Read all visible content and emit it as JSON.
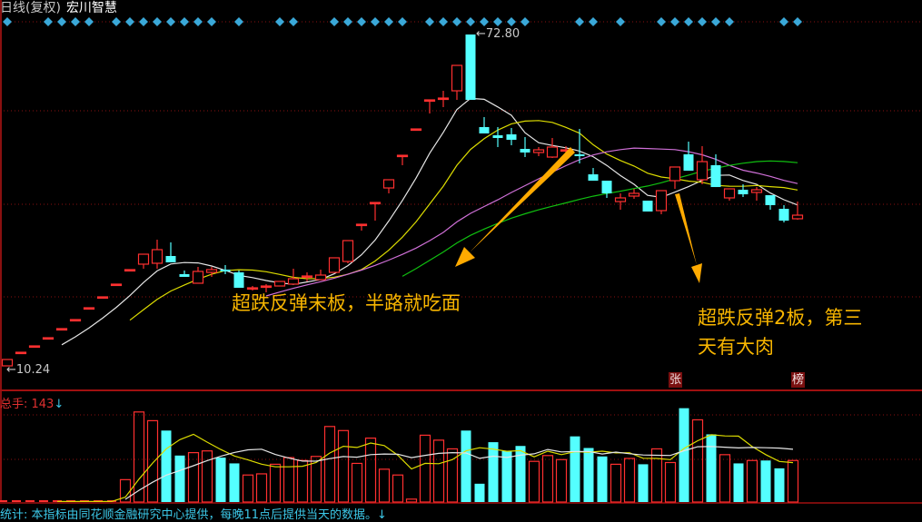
{
  "header": {
    "period": "日线(复权)",
    "stock_name": "宏川智慧"
  },
  "volume_panel": {
    "label": "总手: 143",
    "arrow": "↓"
  },
  "footer": {
    "text": "统计: 本指标由同花顺金融研究中心提供，每晚11点后提供当天的数据。↓"
  },
  "annotations": [
    {
      "text": "超跌反弹末板，半路就吃面"
    },
    {
      "line1": "超跌反弹2板，第三",
      "line2": "天有大肉"
    }
  ],
  "tags": [
    {
      "text": "张",
      "index": 48
    },
    {
      "text": "榜",
      "index": 57
    }
  ],
  "colors": {
    "up": "#ff3030",
    "down": "#54ffff",
    "ma5": "#e6e6e6",
    "ma10": "#dcdc00",
    "ma20": "#d070d8",
    "ma30": "#10c010",
    "arrow": "#ffaa00",
    "signal": "#3aa8d8",
    "grid": "#8a1010"
  },
  "chart_data": {
    "type": "candlestick",
    "price_labels": {
      "high": "72.80",
      "low": "10.24"
    },
    "price_range": [
      10.24,
      72.8
    ],
    "moving_averages": [
      5,
      10,
      20,
      30
    ],
    "volume_moving_averages": [
      5,
      10
    ],
    "signal_indices": [
      0,
      3,
      4,
      5,
      6,
      8,
      9,
      10,
      11,
      12,
      13,
      14,
      15,
      17,
      20,
      21,
      24,
      25,
      26,
      27,
      28,
      29,
      31,
      32,
      33,
      34,
      35,
      36,
      37,
      38,
      42,
      43,
      45,
      48,
      49,
      50,
      51,
      52,
      53,
      57,
      58
    ],
    "candles": [
      [
        10.24,
        11.44,
        10.24,
        11.44
      ],
      [
        12.81,
        12.81,
        12.81,
        12.81
      ],
      [
        14.01,
        14.01,
        14.01,
        14.01
      ],
      [
        15.55,
        15.55,
        15.55,
        15.55
      ],
      [
        17.27,
        17.27,
        17.27,
        17.27
      ],
      [
        18.98,
        18.98,
        18.98,
        18.98
      ],
      [
        21.21,
        21.21,
        21.21,
        21.21
      ],
      [
        23.27,
        23.27,
        23.27,
        23.27
      ],
      [
        25.67,
        25.67,
        25.67,
        25.67
      ],
      [
        28.41,
        28.41,
        28.41,
        28.41
      ],
      [
        29.44,
        31.32,
        28.58,
        31.32
      ],
      [
        29.61,
        34.06,
        28.58,
        32.18
      ],
      [
        30.98,
        33.55,
        29.78,
        29.78
      ],
      [
        27.55,
        28.24,
        27.04,
        27.04
      ],
      [
        25.84,
        28.92,
        25.84,
        28.07
      ],
      [
        27.89,
        28.92,
        27.04,
        28.41
      ],
      [
        28.41,
        29.27,
        27.55,
        28.07
      ],
      [
        27.89,
        28.24,
        24.98,
        24.98
      ],
      [
        24.81,
        25.32,
        24.47,
        24.98
      ],
      [
        25.15,
        25.67,
        24.12,
        25.32
      ],
      [
        25.32,
        26.18,
        25.32,
        26.18
      ],
      [
        25.67,
        28.58,
        25.67,
        26.69
      ],
      [
        27.04,
        27.89,
        26.18,
        27.21
      ],
      [
        26.52,
        28.41,
        26.52,
        27.38
      ],
      [
        27.89,
        30.64,
        27.89,
        30.64
      ],
      [
        29.95,
        33.89,
        29.61,
        33.89
      ],
      [
        36.98,
        36.98,
        35.78,
        36.98
      ],
      [
        41.09,
        41.09,
        37.66,
        41.09
      ],
      [
        43.83,
        45.38,
        42.81,
        45.38
      ],
      [
        50.0,
        50.0,
        48.12,
        50.0
      ],
      [
        54.97,
        54.97,
        54.97,
        54.97
      ],
      [
        60.46,
        60.46,
        57.89,
        60.46
      ],
      [
        60.63,
        62.17,
        59.09,
        60.8
      ],
      [
        62.17,
        66.97,
        60.46,
        66.97
      ],
      [
        72.8,
        72.8,
        60.46,
        60.46
      ],
      [
        55.32,
        57.2,
        54.12,
        54.12
      ],
      [
        53.77,
        55.32,
        51.55,
        53.26
      ],
      [
        53.95,
        55.15,
        51.89,
        52.92
      ],
      [
        51.2,
        53.43,
        49.66,
        50.52
      ],
      [
        50.52,
        51.55,
        49.83,
        51.03
      ],
      [
        49.66,
        53.26,
        49.49,
        51.55
      ],
      [
        50.86,
        51.72,
        48.98,
        51.03
      ],
      [
        50.18,
        54.97,
        48.46,
        49.83
      ],
      [
        46.4,
        47.6,
        45.2,
        45.2
      ],
      [
        45.2,
        45.2,
        41.95,
        42.81
      ],
      [
        41.26,
        42.81,
        39.72,
        41.95
      ],
      [
        42.29,
        43.66,
        41.78,
        42.81
      ],
      [
        41.43,
        41.43,
        39.38,
        39.38
      ],
      [
        39.55,
        43.32,
        38.86,
        43.32
      ],
      [
        45.2,
        47.78,
        43.66,
        47.78
      ],
      [
        50.18,
        52.57,
        47.09,
        47.09
      ],
      [
        45.38,
        51.72,
        44.52,
        48.8
      ],
      [
        48.12,
        50.18,
        44.0,
        44.0
      ],
      [
        41.95,
        43.66,
        41.43,
        43.66
      ],
      [
        43.49,
        44.52,
        42.12,
        42.63
      ],
      [
        42.98,
        44.0,
        41.43,
        43.49
      ],
      [
        42.46,
        42.46,
        39.72,
        40.58
      ],
      [
        39.89,
        40.58,
        37.32,
        37.66
      ],
      [
        38.01,
        41.26,
        37.83,
        38.69
      ]
    ],
    "candle_fields": [
      "open",
      "high",
      "low",
      "close"
    ],
    "volume": [
      2,
      2,
      2,
      2,
      2,
      2,
      2,
      2,
      2,
      77,
      310,
      280,
      246,
      160,
      170,
      176,
      153,
      133,
      93,
      97,
      130,
      153,
      143,
      157,
      260,
      246,
      133,
      220,
      113,
      93,
      10,
      230,
      213,
      183,
      246,
      63,
      206,
      176,
      193,
      140,
      160,
      146,
      226,
      186,
      157,
      130,
      150,
      130,
      183,
      136,
      323,
      283,
      233,
      163,
      133,
      143,
      143,
      116,
      143
    ],
    "volume_range": [
      0,
      330
    ]
  }
}
